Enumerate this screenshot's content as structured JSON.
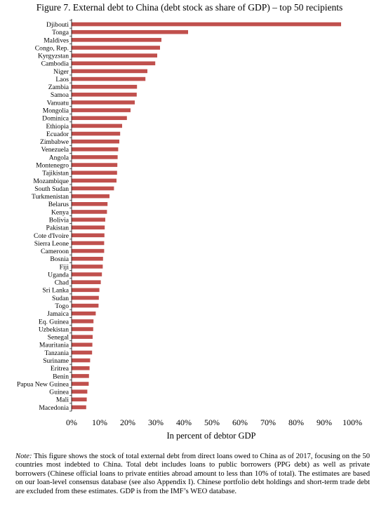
{
  "figure": {
    "title": "Figure 7. External debt to China (debt stock as share of GDP) – top 50 recipients",
    "note_label": "Note:",
    "note_text": " This figure shows the stock of total external debt from direct loans owed to China as of 2017, focusing on the 50 countries most indebted to China. Total debt includes loans to public borrowers (PPG debt) as well as private borrowers (Chinese official loans to private entities abroad amount to less than 10% of total). The estimates are based on our loan-level consensus database (see also Appendix I). Chinese portfolio debt holdings and short-term trade debt are excluded from these estimates. GDP is from the IMF’s WEO database."
  },
  "chart_data": {
    "type": "bar",
    "orientation": "horizontal",
    "title": "Figure 7. External debt to China (debt stock as share of GDP) – top 50 recipients",
    "xlabel": "In percent of debtor GDP",
    "ylabel": "",
    "xlim": [
      0,
      100
    ],
    "xticks": [
      0,
      10,
      20,
      30,
      40,
      50,
      60,
      70,
      80,
      90,
      100
    ],
    "xtick_labels": [
      "0%",
      "10%",
      "20%",
      "30%",
      "40%",
      "50%",
      "60%",
      "70%",
      "80%",
      "90%",
      "100%"
    ],
    "grid": false,
    "bar_color": "#c0504d",
    "categories": [
      "Djibouti",
      "Tonga",
      "Maldives",
      "Congo, Rep.",
      "Kyrgyzstan",
      "Cambodia",
      "Niger",
      "Laos",
      "Zambia",
      "Samoa",
      "Vanuatu",
      "Mongolia",
      "Dominica",
      "Ethiopia",
      "Ecuador",
      "Zimbabwe",
      "Venezuela",
      "Angola",
      "Montenegro",
      "Tajikistan",
      "Mozambique",
      "South Sudan",
      "Turkmenistan",
      "Belarus",
      "Kenya",
      "Bolivia",
      "Pakistan",
      "Cote d'Ivoire",
      "Sierra Leone",
      "Cameroon",
      "Bosnia",
      "Fiji",
      "Uganda",
      "Chad",
      "Sri Lanka",
      "Sudan",
      "Togo",
      "Jamaica",
      "Eq. Guinea",
      "Uzbekistan",
      "Senegal",
      "Mauritania",
      "Tanzania",
      "Suriname",
      "Eritrea",
      "Benin",
      "Papua New Guinea",
      "Guinea",
      "Mali",
      "Macedonia"
    ],
    "values": [
      96,
      41.5,
      32,
      31.5,
      30.5,
      29.8,
      27,
      26.3,
      23.3,
      23.2,
      22.5,
      21,
      19.7,
      18,
      17.3,
      17,
      16.6,
      16.4,
      16.3,
      16.2,
      16,
      15.1,
      13.5,
      12.8,
      12.6,
      12,
      11.8,
      11.7,
      11.6,
      11.6,
      11.2,
      11.1,
      10.8,
      10.4,
      9.9,
      9.7,
      9.6,
      8.6,
      7.8,
      7.7,
      7.5,
      7.4,
      7.3,
      6.6,
      6.4,
      6.2,
      6.1,
      5.6,
      5.4,
      5.2
    ]
  }
}
